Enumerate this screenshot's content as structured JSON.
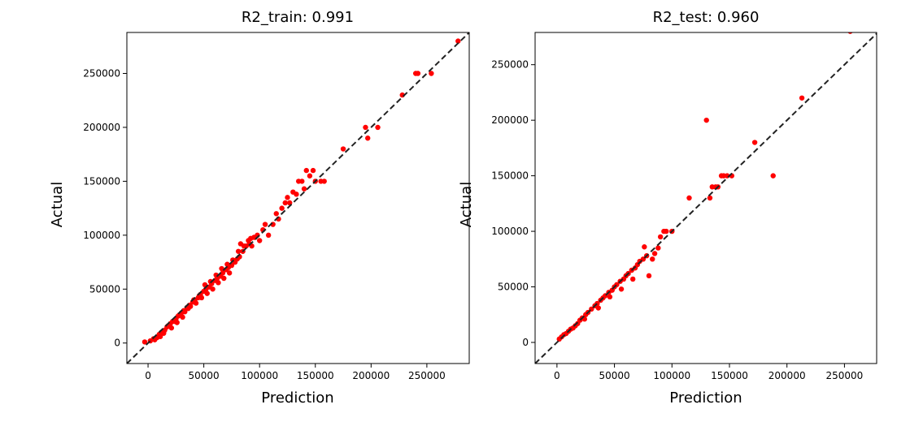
{
  "chart_data": [
    {
      "type": "scatter",
      "title": "R2_train: 0.991",
      "xlabel": "Prediction",
      "ylabel": "Actual",
      "xlim": [
        -19000,
        288000
      ],
      "ylim": [
        -19000,
        288000
      ],
      "xticks": [
        0,
        50000,
        100000,
        150000,
        200000,
        250000
      ],
      "yticks": [
        0,
        50000,
        100000,
        150000,
        200000,
        250000
      ],
      "xtick_labels": [
        "0",
        "50000",
        "100000",
        "150000",
        "200000",
        "250000"
      ],
      "ytick_labels": [
        "0",
        "50000",
        "100000",
        "150000",
        "200000",
        "250000"
      ],
      "grid": false,
      "reference_line": "y = x (black dashed)",
      "point_color": "#ff0000",
      "x": [
        -3000,
        2000,
        5000,
        8000,
        10000,
        12000,
        15000,
        17000,
        20000,
        22000,
        25000,
        27000,
        30000,
        32000,
        35000,
        37000,
        40000,
        42000,
        45000,
        47000,
        50000,
        52000,
        55000,
        57000,
        60000,
        62000,
        65000,
        67000,
        70000,
        72000,
        75000,
        78000,
        80000,
        82000,
        85000,
        88000,
        90000,
        93000,
        95000,
        98000,
        100000,
        105000,
        108000,
        112000,
        115000,
        120000,
        123000,
        127000,
        130000,
        135000,
        138000,
        142000,
        145000,
        150000,
        155000,
        175000,
        195000,
        197000,
        206000,
        228000,
        240000,
        242000,
        254000,
        278000,
        14000,
        18000,
        24000,
        28000,
        33000,
        38000,
        43000,
        48000,
        53000,
        58000,
        63000,
        68000,
        73000,
        6000,
        11000,
        21000,
        26000,
        31000,
        36000,
        41000,
        46000,
        51000,
        56000,
        61000,
        66000,
        71000,
        76000,
        81000,
        86000,
        91000,
        96000,
        83000,
        92000,
        103000,
        117000,
        125000,
        133000,
        140000,
        148000,
        158000
      ],
      "y": [
        1000,
        2000,
        4000,
        5000,
        8000,
        10000,
        12000,
        15000,
        18000,
        20000,
        22000,
        25000,
        28000,
        30000,
        33000,
        35000,
        38000,
        40000,
        42000,
        45000,
        48000,
        50000,
        52000,
        55000,
        58000,
        60000,
        62000,
        65000,
        68000,
        70000,
        72000,
        75000,
        78000,
        80000,
        85000,
        90000,
        95000,
        90000,
        98000,
        100000,
        95000,
        110000,
        100000,
        110000,
        120000,
        125000,
        130000,
        130000,
        140000,
        150000,
        150000,
        160000,
        155000,
        150000,
        150000,
        180000,
        200000,
        190000,
        200000,
        230000,
        250000,
        250000,
        250000,
        280000,
        9000,
        16000,
        20000,
        26000,
        29000,
        34000,
        37000,
        42000,
        46000,
        50000,
        56000,
        60000,
        65000,
        3000,
        6000,
        14000,
        19000,
        24000,
        32000,
        40000,
        44000,
        54000,
        57000,
        63000,
        69000,
        73000,
        77000,
        85000,
        90000,
        92000,
        98000,
        92000,
        97000,
        105000,
        115000,
        135000,
        138000,
        143000,
        160000,
        150000
      ]
    },
    {
      "type": "scatter",
      "title": "R2_test: 0.960",
      "xlabel": "Prediction",
      "ylabel": "Actual",
      "xlim": [
        -19000,
        278000
      ],
      "ylim": [
        -19000,
        279000
      ],
      "xticks": [
        0,
        50000,
        100000,
        150000,
        200000,
        250000
      ],
      "yticks": [
        0,
        50000,
        100000,
        150000,
        200000,
        250000
      ],
      "xtick_labels": [
        "0",
        "50000",
        "100000",
        "150000",
        "200000",
        "250000"
      ],
      "ytick_labels": [
        "0",
        "50000",
        "100000",
        "150000",
        "200000",
        "250000"
      ],
      "grid": false,
      "reference_line": "y = x (black dashed)",
      "point_color": "#ff0000",
      "x": [
        2000,
        4000,
        6000,
        8000,
        10000,
        12000,
        14000,
        16000,
        18000,
        20000,
        22000,
        25000,
        27000,
        30000,
        33000,
        35000,
        38000,
        40000,
        42000,
        45000,
        48000,
        50000,
        52000,
        55000,
        58000,
        60000,
        62000,
        65000,
        68000,
        70000,
        72000,
        75000,
        78000,
        80000,
        83000,
        85000,
        88000,
        90000,
        93000,
        95000,
        100000,
        115000,
        130000,
        133000,
        135000,
        138000,
        140000,
        143000,
        145000,
        148000,
        152000,
        172000,
        188000,
        213000,
        255000,
        24000,
        36000,
        46000,
        56000,
        66000,
        76000
      ],
      "y": [
        3000,
        5000,
        7000,
        8000,
        10000,
        12000,
        13000,
        15000,
        17000,
        20000,
        22000,
        25000,
        27000,
        30000,
        33000,
        35000,
        38000,
        40000,
        42000,
        45000,
        47000,
        50000,
        52000,
        55000,
        57000,
        60000,
        62000,
        65000,
        67000,
        70000,
        73000,
        75000,
        78000,
        60000,
        75000,
        80000,
        85000,
        95000,
        100000,
        100000,
        100000,
        130000,
        200000,
        130000,
        140000,
        140000,
        140000,
        150000,
        150000,
        150000,
        150000,
        180000,
        150000,
        220000,
        280000,
        21000,
        31000,
        41000,
        48000,
        57000,
        86000
      ]
    }
  ]
}
